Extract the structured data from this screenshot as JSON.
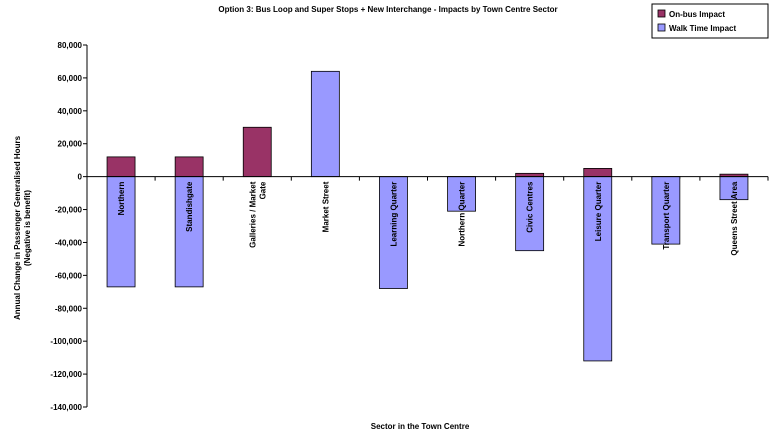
{
  "chart_data": {
    "type": "bar",
    "title": "Option 3: Bus Loop and Super Stops + New Interchange - Impacts by Town Centre Sector",
    "xlabel": "Sector in the Town Centre",
    "ylabel": "Annual Change in Passenger Generalised Hours (Negative is benefit)",
    "ylim": [
      -140000,
      80000
    ],
    "ytick_step": 20000,
    "ytick_labels": [
      "80,000",
      "60,000",
      "40,000",
      "20,000",
      "0",
      "-20,000",
      "-40,000",
      "-60,000",
      "-80,000",
      "-100,000",
      "-120,000",
      "-140,000"
    ],
    "grid": false,
    "legend_position": "top-right",
    "categories": [
      [
        "Northern"
      ],
      [
        "Standishgate"
      ],
      [
        "Galleries / Market",
        "Gate"
      ],
      [
        "Market Street"
      ],
      [
        "Learning Quarter"
      ],
      [
        "Northern Quarter"
      ],
      [
        "Civic Centres"
      ],
      [
        "Leisure Quarter"
      ],
      [
        "Transport Quarter"
      ],
      [
        "Queens Street Area"
      ]
    ],
    "series": [
      {
        "name": "On-bus Impact",
        "color": "#993366",
        "values": [
          12000,
          12000,
          30000,
          0,
          0,
          -1000,
          2000,
          5000,
          -1000,
          1500
        ]
      },
      {
        "name": "Walk Time Impact",
        "color": "#9999ff",
        "values": [
          -67000,
          -67000,
          0,
          64000,
          -68000,
          -21000,
          -45000,
          -112000,
          -41000,
          -14000
        ]
      }
    ]
  }
}
